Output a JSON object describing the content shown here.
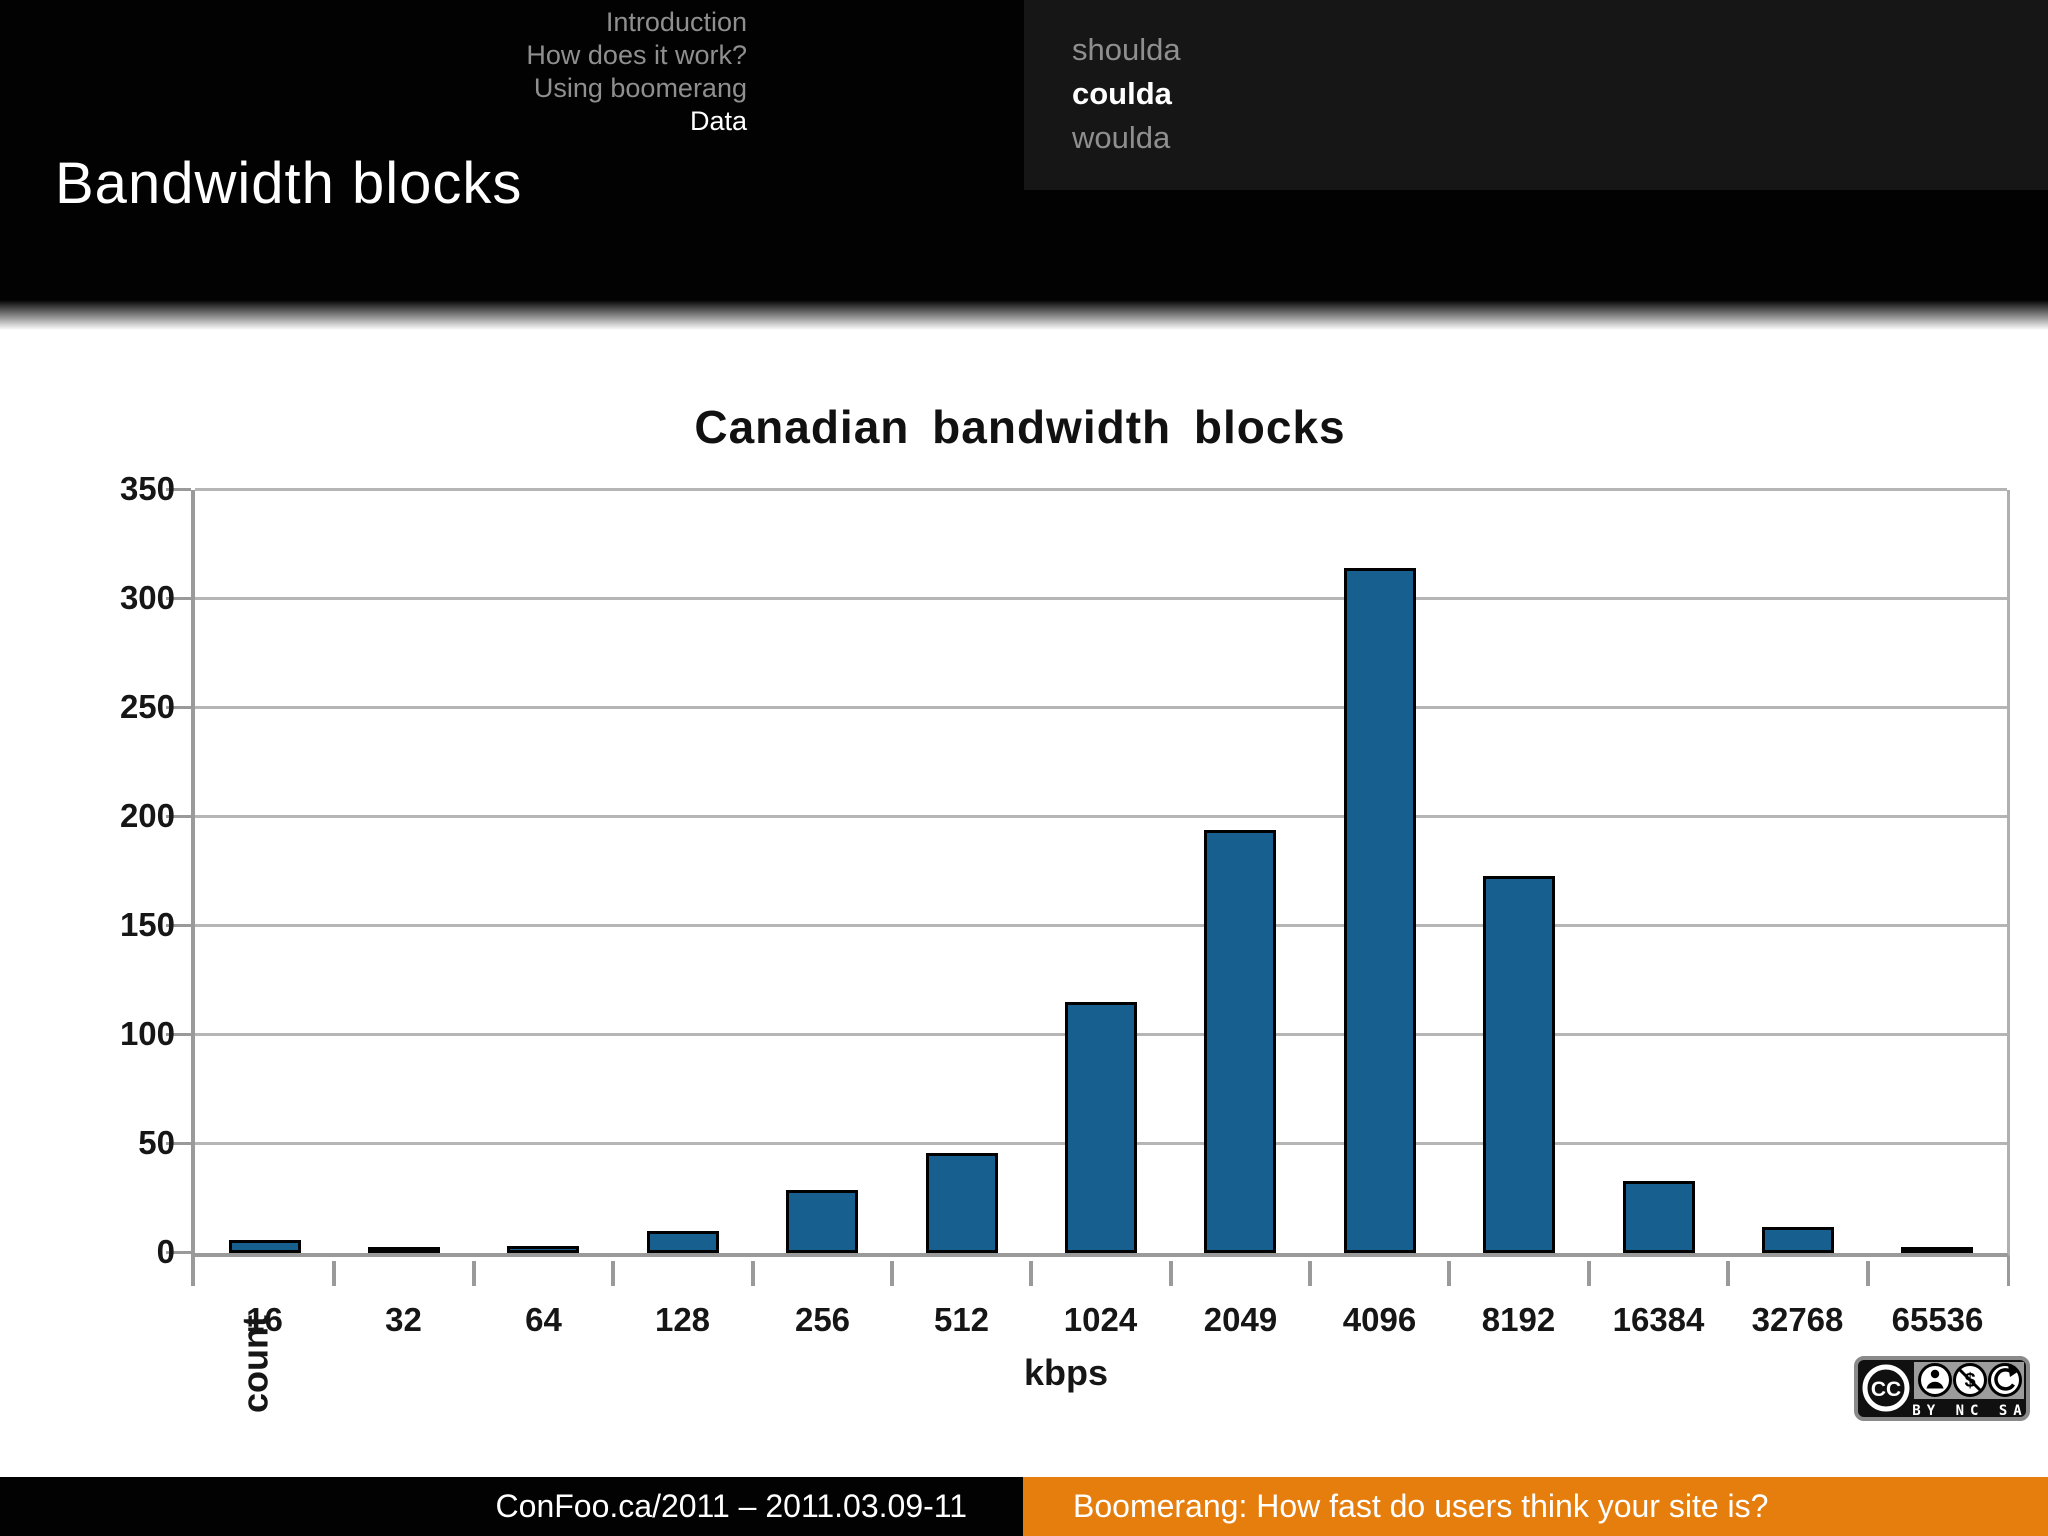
{
  "nav": {
    "left": [
      {
        "label": "Introduction",
        "active": false
      },
      {
        "label": "How does it work?",
        "active": false
      },
      {
        "label": "Using boomerang",
        "active": false
      },
      {
        "label": "Data",
        "active": true
      }
    ],
    "right": [
      {
        "label": "shoulda",
        "active": false
      },
      {
        "label": "coulda",
        "active": true
      },
      {
        "label": "woulda",
        "active": false
      }
    ]
  },
  "slide": {
    "title": "Bandwidth blocks"
  },
  "chart_data": {
    "type": "bar",
    "title": "Canadian bandwidth blocks",
    "categories": [
      "16",
      "32",
      "64",
      "128",
      "256",
      "512",
      "1024",
      "2049",
      "4096",
      "8192",
      "16384",
      "32768",
      "65536"
    ],
    "values": [
      7,
      2,
      4,
      11,
      30,
      47,
      116,
      195,
      315,
      174,
      34,
      13,
      1
    ],
    "xlabel": "kbps",
    "ylabel": "count",
    "ylim": [
      0,
      350
    ],
    "ytick_step": 50,
    "grid": true,
    "legend": false,
    "bar_color": "#175f8f",
    "bar_border_color": "#000000"
  },
  "footer": {
    "left": "ConFoo.ca/2011 – 2011.03.09-11",
    "right": "Boomerang: How fast do users think your site is?",
    "accent": "#e67e0e"
  },
  "license_badge": {
    "logo": "CC",
    "terms_label": "BY NC SA"
  }
}
